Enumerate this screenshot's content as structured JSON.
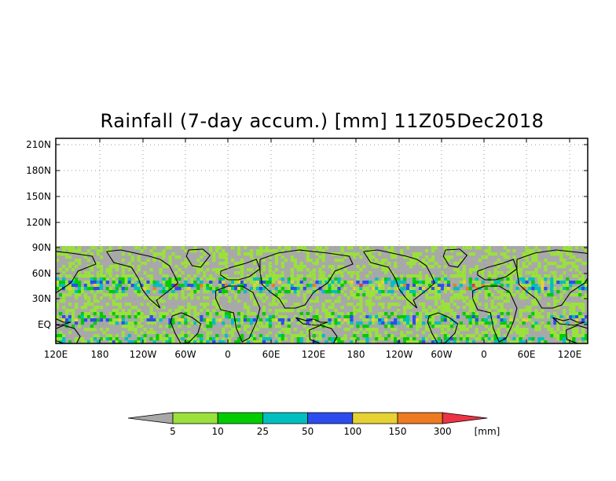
{
  "title": "Rainfall (7-day accum.) [mm] 11Z05Dec2018",
  "map": {
    "x_tick_labels": [
      "120E",
      "180",
      "120W",
      "60W",
      "0",
      "60E",
      "120E",
      "180",
      "120W",
      "60W",
      "0",
      "60E",
      "120E"
    ],
    "y_tick_labels": [
      "EQ",
      "30N",
      "60N",
      "90N",
      "120N",
      "150N",
      "180N",
      "210N"
    ],
    "no_data_color": "#a8a8a8",
    "coastline_color": "#000000"
  },
  "colorbar": {
    "unit": "[mm]",
    "levels": [
      "5",
      "10",
      "25",
      "50",
      "100",
      "150",
      "300"
    ],
    "colors": [
      "#a8a8a8",
      "#9ae13c",
      "#00cc00",
      "#00bfbf",
      "#2d4cf0",
      "#e6d232",
      "#ee7b22",
      "#ee3344"
    ]
  }
}
